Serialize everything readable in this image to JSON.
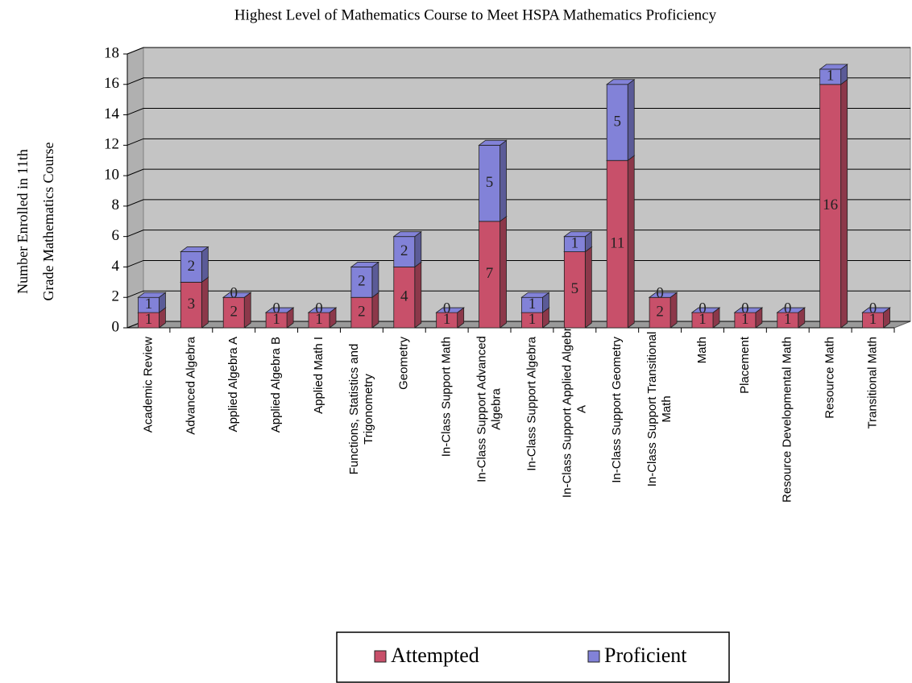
{
  "chart_data": {
    "type": "stacked-bar-3d",
    "title": "Highest Level of Mathematics Course to Meet HSPA Mathematics Proficiency",
    "ylabel": [
      "Number Enrolled in 11th",
      "Grade Mathematics Course"
    ],
    "categories": [
      "Academic Review",
      "Advanced Algebra",
      "Applied Algebra A",
      "Applied Algebra B",
      "Applied Math I",
      "Functions, Statistics and Trigonometry",
      "Geometry",
      "In-Class Support Math",
      "In-Class Support Advanced Algebra",
      "In-Class Support Algebra",
      "In-Class Support Applied Algebra A",
      "In-Class Support Geometry",
      "In-Class Support Transitional Math",
      "Math",
      "Placement",
      "Resource Developmental Math",
      "Resource Math",
      "Transitional Math"
    ],
    "series": [
      {
        "name": "Attempted",
        "color": "#c8506a",
        "values": [
          1,
          3,
          2,
          1,
          1,
          2,
          4,
          1,
          7,
          1,
          5,
          11,
          2,
          1,
          1,
          1,
          16,
          1
        ]
      },
      {
        "name": "Proficient",
        "color": "#8282d8",
        "values": [
          1,
          2,
          0,
          0,
          0,
          2,
          2,
          0,
          5,
          1,
          1,
          5,
          0,
          0,
          0,
          0,
          1,
          0
        ]
      }
    ],
    "ylim": [
      0,
      18
    ],
    "yticks": [
      0,
      2,
      4,
      6,
      8,
      10,
      12,
      14,
      16,
      18
    ],
    "grid": true,
    "legend": "bottom"
  }
}
